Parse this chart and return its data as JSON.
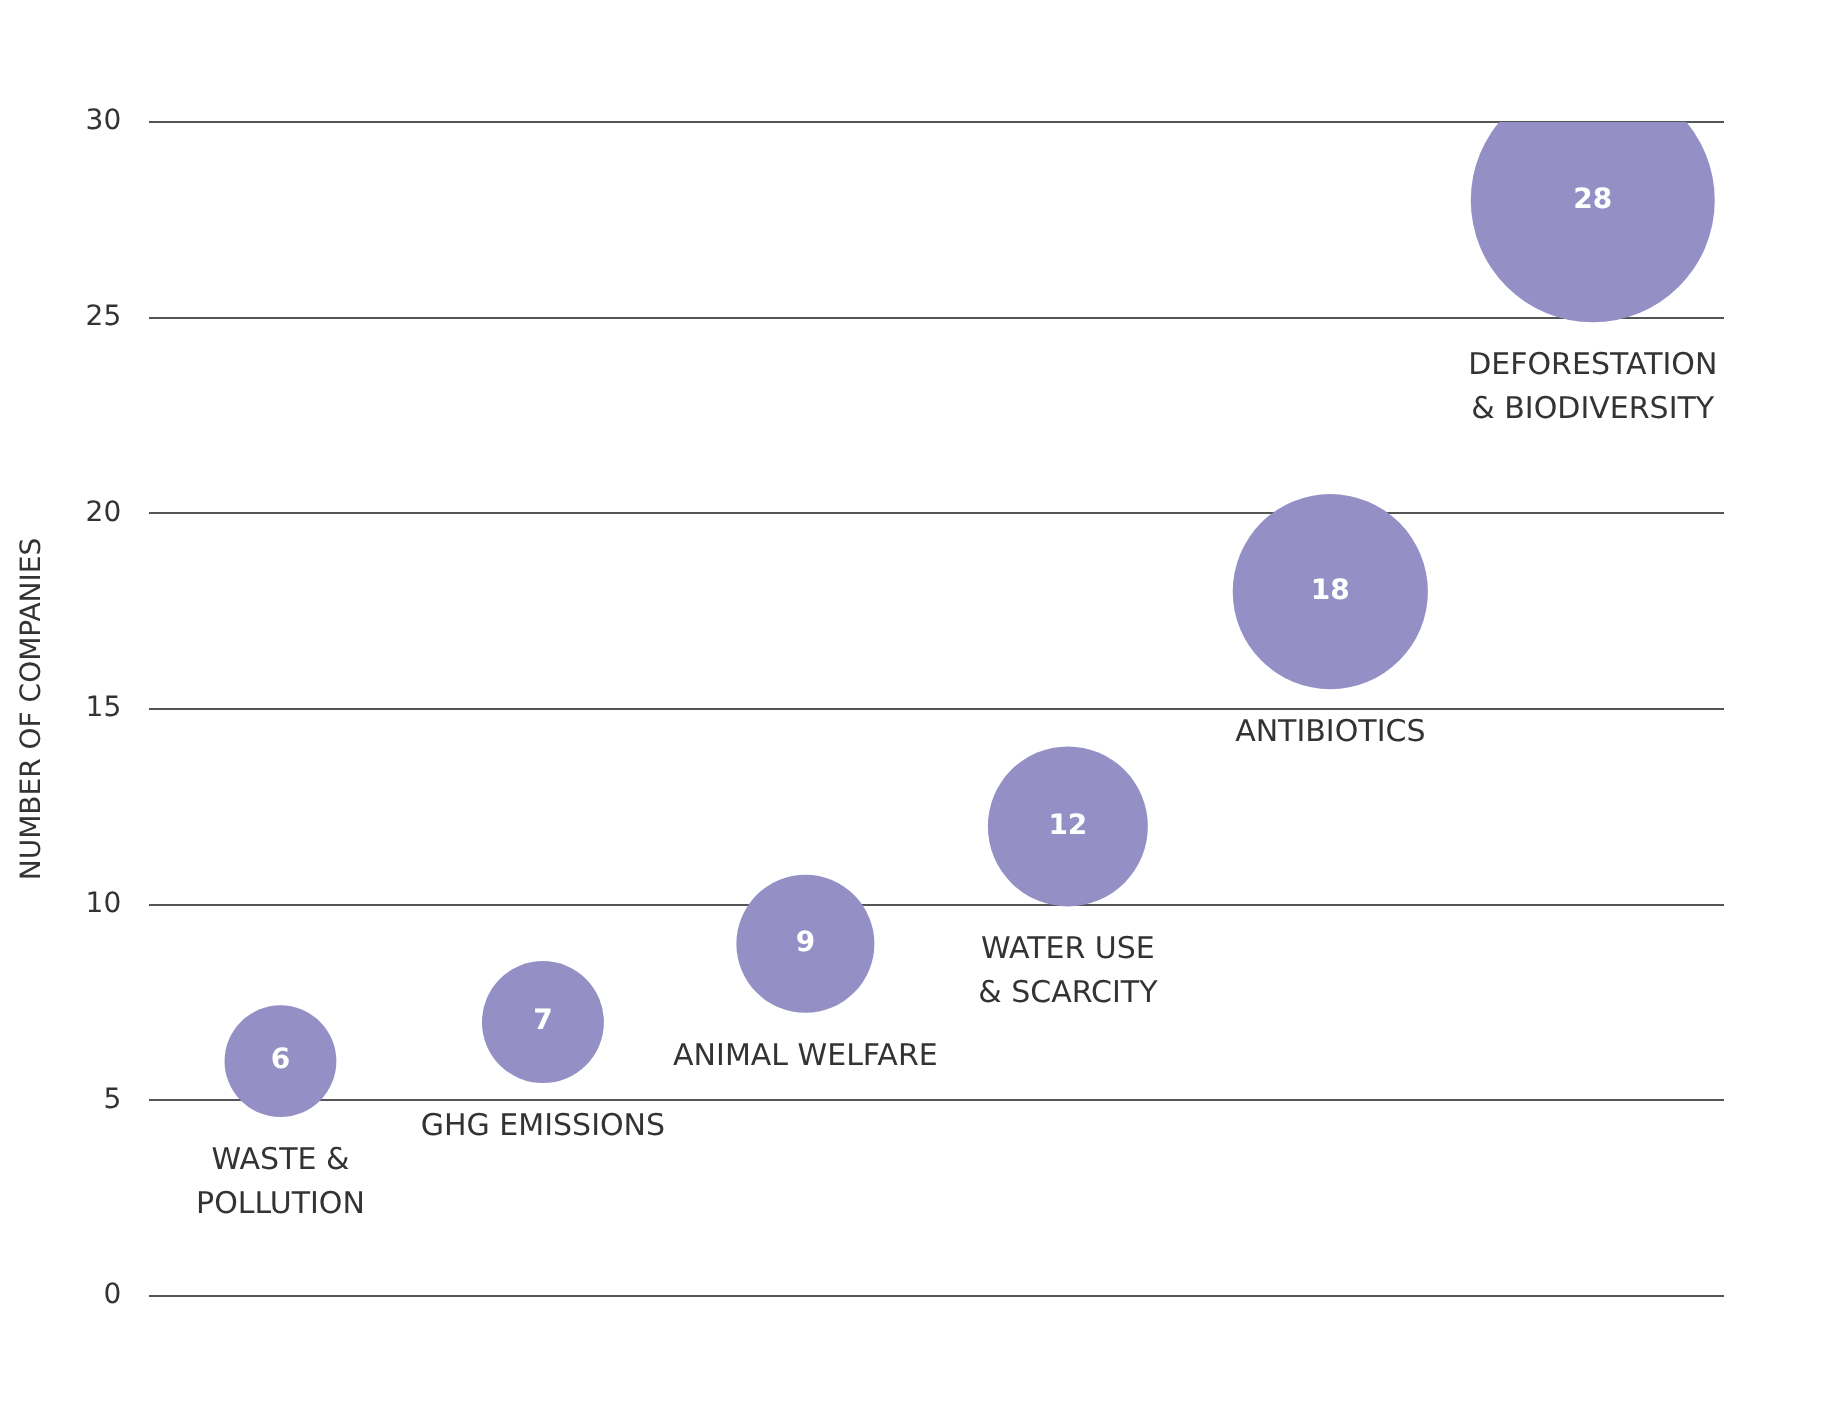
{
  "chart_data": {
    "type": "bubble",
    "ylabel": "NUMBER OF COMPANIES",
    "categories": [
      "WASTE &\nPOLLUTION",
      "GHG EMISSIONS",
      "ANIMAL WELFARE",
      "WATER USE\n& SCARCITY",
      "ANTIBIOTICS",
      "DEFORESTATION\n& BIODIVERSITY"
    ],
    "values": [
      6,
      7,
      9,
      12,
      18,
      28
    ],
    "sizes": [
      0.21,
      0.25,
      0.32,
      0.43,
      0.64,
      1
    ],
    "color": "#9490c6",
    "ylim": [
      0,
      30
    ],
    "yticks": [
      0,
      5,
      10,
      15,
      20,
      25,
      30
    ],
    "grid": "y",
    "legend": false,
    "data_labels": true
  }
}
